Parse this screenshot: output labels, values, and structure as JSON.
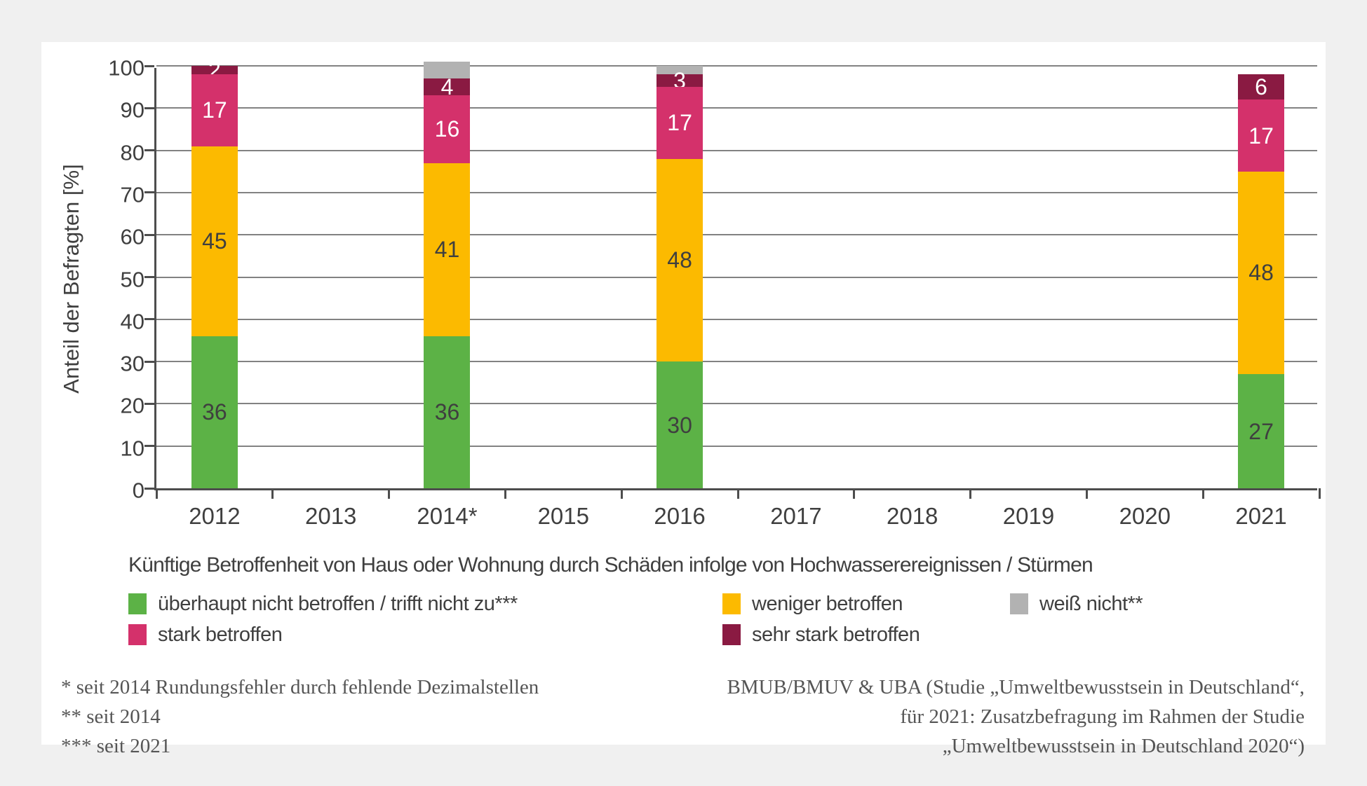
{
  "window": {
    "background": "#f0f0f0",
    "card_background": "#ffffff"
  },
  "chart_data": {
    "type": "bar",
    "stacked": true,
    "title": "Künftige Betroffenheit von Haus oder Wohnung durch Schäden infolge von Hochwasserereignissen / Stürmen",
    "ylabel": "Anteil der Befragten [%]",
    "ylim": [
      0,
      100
    ],
    "ytick_step": 10,
    "grid": true,
    "legend_position": "below",
    "categories": [
      "2012",
      "2013",
      "2014*",
      "2015",
      "2016",
      "2017",
      "2018",
      "2019",
      "2020",
      "2021"
    ],
    "series": [
      {
        "name": "überhaupt nicht betroffen / trifft nicht zu***",
        "color": "#5cb246",
        "label_color": "#3f3f3f",
        "show_labels": true,
        "values": [
          36,
          null,
          36,
          null,
          30,
          null,
          null,
          null,
          null,
          27
        ]
      },
      {
        "name": "weniger betroffen",
        "color": "#fcba00",
        "label_color": "#3f3f3f",
        "show_labels": true,
        "values": [
          45,
          null,
          41,
          null,
          48,
          null,
          null,
          null,
          null,
          48
        ]
      },
      {
        "name": "stark betroffen",
        "color": "#d4316b",
        "label_color": "#ffffff",
        "show_labels": true,
        "values": [
          17,
          null,
          16,
          null,
          17,
          null,
          null,
          null,
          null,
          17
        ]
      },
      {
        "name": "sehr stark betroffen",
        "color": "#8a1a42",
        "label_color": "#ffffff",
        "show_labels": true,
        "values": [
          2,
          null,
          4,
          null,
          3,
          null,
          null,
          null,
          null,
          6
        ]
      },
      {
        "name": "weiß nicht**",
        "color": "#b2b2b2",
        "label_color": "#3f3f3f",
        "show_labels": false,
        "values": [
          null,
          null,
          4,
          null,
          2,
          null,
          null,
          null,
          null,
          null
        ]
      }
    ]
  },
  "legend": {
    "items": [
      {
        "label": "überhaupt nicht betroffen / trifft nicht zu***",
        "color": "#5cb246",
        "row": 0,
        "col": 0
      },
      {
        "label": "weniger betroffen",
        "color": "#fcba00",
        "row": 0,
        "col": 1
      },
      {
        "label": "weiß nicht**",
        "color": "#b2b2b2",
        "row": 0,
        "col": 2
      },
      {
        "label": "stark betroffen",
        "color": "#d4316b",
        "row": 1,
        "col": 0
      },
      {
        "label": "sehr stark betroffen",
        "color": "#8a1a42",
        "row": 1,
        "col": 1
      }
    ]
  },
  "footnotes": [
    "* seit 2014 Rundungsfehler durch fehlende Dezimalstellen",
    "** seit 2014",
    "*** seit 2021"
  ],
  "source_lines": [
    "BMUB/BMUV & UBA (Studie „Umweltbewusstsein in Deutschland“,",
    "für 2021: Zusatzbefragung im Rahmen der Studie",
    "„Umweltbewusstsein in Deutschland 2020“)"
  ]
}
